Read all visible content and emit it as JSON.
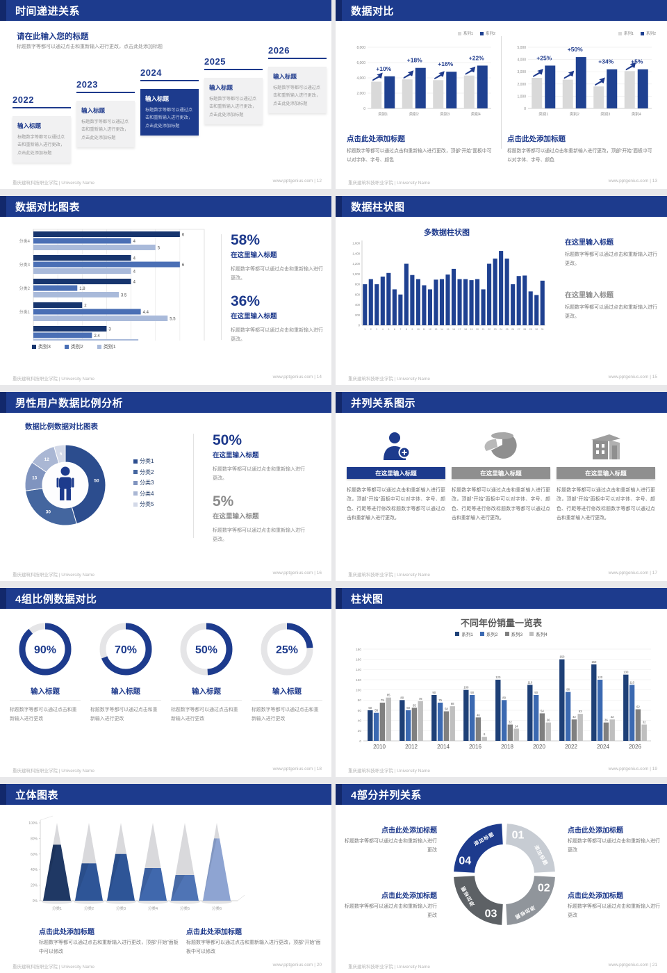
{
  "colors": {
    "accent": "#1d3b8d",
    "accent_dark": "#12286b",
    "heading_blue": "#1e3a8c",
    "text_gray": "#7a7a7a",
    "footer_gray": "#b5b5b5"
  },
  "footer": {
    "left": "重庆建筑科技职业学院 | University Name",
    "site": "www.pptgenius.com",
    "sep": " | "
  },
  "slides": {
    "s1": {
      "title": "时间递进关系",
      "page": "12",
      "heading": "请在此输入您的标题",
      "intro": "标题数字等都可以通过点击和重新输入进行更改，点击此处添加标题",
      "milestones": [
        {
          "year": "2022",
          "title": "输入标题",
          "body": "标题数字等都可以通过点击和重新输入进行更改，点击此处添加标题",
          "highlight": false
        },
        {
          "year": "2023",
          "title": "输入标题",
          "body": "标题数字等都可以通过点击和重新输入进行更改，点击此处添加标题",
          "highlight": false
        },
        {
          "year": "2024",
          "title": "输入标题",
          "body": "标题数字等都可以通过点击和重新输入进行更改，点击此处添加标题",
          "highlight": true
        },
        {
          "year": "2025",
          "title": "输入标题",
          "body": "标题数字等都可以通过点击和重新输入进行更改，点击此处添加标题",
          "highlight": false
        },
        {
          "year": "2026",
          "title": "输入标题",
          "body": "标题数字等都可以通过点击和重新输入进行更改，点击此处添加标题",
          "highlight": false
        }
      ]
    },
    "s2": {
      "title": "数据对比",
      "page": "13",
      "blocks": [
        {
          "heading": "点击此处添加标题",
          "body": "标题数字等都可以通过点击和重新输入进行更改，顶部“开始”面板中可以对字体、字号、颜色"
        },
        {
          "heading": "点击此处添加标题",
          "body": "标题数字等都可以通过点击和重新输入进行更改，顶部“开始”面板中可以对字体、字号、颜色"
        }
      ]
    },
    "s3": {
      "title": "数据对比图表",
      "page": "14",
      "stats": [
        {
          "pct": "58%",
          "heading": "在这里输入标题",
          "body": "标题数字等都可以通过点击和重新输入进行更改。"
        },
        {
          "pct": "36%",
          "heading": "在这里输入标题",
          "body": "标题数字等都可以通过点击和重新输入进行更改。"
        }
      ]
    },
    "s4": {
      "title": "数据柱状图",
      "page": "15",
      "chart_title": "多数据柱状图",
      "blocks": [
        {
          "heading": "在这里输入标题",
          "body": "标题数字等都可以通过点击和重新输入进行更改。",
          "style": "blue"
        },
        {
          "heading": "在这里输入标题",
          "body": "标题数字等都可以通过点击和重新输入进行更改。",
          "style": "gray"
        }
      ]
    },
    "s5": {
      "title": "男性用户数据比例分析",
      "page": "16",
      "chart_title": "数据比例数据对比图表",
      "stats": [
        {
          "pct": "50%",
          "heading": "在这里输入标题",
          "body": "标题数字等都可以通过点击和重新输入进行更改。",
          "style": "blue"
        },
        {
          "pct": "5%",
          "heading": "在这里输入标题",
          "body": "标题数字等都可以通过点击和重新输入进行更改。",
          "style": "gray"
        }
      ]
    },
    "s6": {
      "title": "并列关系图示",
      "page": "17",
      "cards": [
        {
          "icon": "person-add-icon",
          "heading": "在这里输入标题",
          "accent": "blue",
          "body": "标题数字等都可以通过点击和重新输入进行更改，顶部“开始”面板中可以对字体、字号、颜色、行距等进行修改标题数字等都可以通过点击和重新输入进行更改。"
        },
        {
          "icon": "pie-chart-icon",
          "heading": "在这里输入标题",
          "accent": "gray",
          "body": "标题数字等都可以通过点击和重新输入进行更改，顶部“开始”面板中可以对字体、字号、颜色、行距等进行修改标题数字等都可以通过点击和重新输入进行更改。"
        },
        {
          "icon": "building-icon",
          "heading": "在这里输入标题",
          "accent": "gray",
          "body": "标题数字等都可以通过点击和重新输入进行更改，顶部“开始”面板中可以对字体、字号、颜色、行距等进行修改标题数字等都可以通过点击和重新输入进行更改。"
        }
      ]
    },
    "s7": {
      "title": "4组比例数据对比",
      "page": "18",
      "gauges": [
        {
          "pct": 90,
          "label": "90%",
          "heading": "输入标题",
          "body": "标题数字等都可以通过点击和重新输入进行更改"
        },
        {
          "pct": 70,
          "label": "70%",
          "heading": "输入标题",
          "body": "标题数字等都可以通过点击和重新输入进行更改"
        },
        {
          "pct": 50,
          "label": "50%",
          "heading": "输入标题",
          "body": "标题数字等都可以通过点击和重新输入进行更改"
        },
        {
          "pct": 25,
          "label": "25%",
          "heading": "输入标题",
          "body": "标题数字等都可以通过点击和重新输入进行更改"
        }
      ]
    },
    "s8": {
      "title": "柱状图",
      "page": "19",
      "chart_title": "不同年份销量一览表"
    },
    "s9": {
      "title": "立体图表",
      "page": "20",
      "blocks": [
        {
          "heading": "点击此处添加标题",
          "body": "标题数字等都可以通过点击和重新输入进行更改，顶部“开始”面板中可以修改"
        },
        {
          "heading": "点击此处添加标题",
          "body": "标题数字等都可以通过点击和重新输入进行更改，顶部“开始”面板中可以修改"
        }
      ]
    },
    "s10": {
      "title": "4部分并列关系",
      "page": "21",
      "ring": {
        "segments": [
          {
            "num": "01",
            "label": "添加标题",
            "color": "#c7ccd3"
          },
          {
            "num": "02",
            "label": "添加标题",
            "color": "#90959b"
          },
          {
            "num": "03",
            "label": "添加标题",
            "color": "#5d6165"
          },
          {
            "num": "04",
            "label": "添加标题",
            "color": "#1d3b8d"
          }
        ]
      },
      "blocks": [
        {
          "heading": "点击此处添加标题",
          "body": "标题数字等都可以通过点击和重新输入进行更改"
        },
        {
          "heading": "点击此处添加标题",
          "body": "标题数字等都可以通过点击和重新输入进行更改"
        },
        {
          "heading": "点击此处添加标题",
          "body": "标题数字等都可以通过点击和重新输入进行更改"
        },
        {
          "heading": "点击此处添加标题",
          "body": "标题数字等都可以通过点击和重新输入进行更改"
        }
      ]
    }
  },
  "chart_data": [
    {
      "id": "s2-left",
      "type": "bar",
      "categories": [
        "类别1",
        "类别2",
        "类别3",
        "类别4"
      ],
      "series": [
        {
          "name": "系列1",
          "color": "#d9d9d9",
          "values": [
            3500,
            3800,
            3700,
            4300
          ]
        },
        {
          "name": "系列2",
          "color": "#1f4191",
          "values": [
            4200,
            5300,
            4800,
            5600
          ]
        }
      ],
      "annotations": [
        "+10%",
        "+18%",
        "+16%",
        "+22%"
      ],
      "ylim": [
        0,
        8000
      ],
      "ystep": 2000,
      "grid": true,
      "legend_position": "top-right"
    },
    {
      "id": "s2-right",
      "type": "bar",
      "categories": [
        "类别1",
        "类别2",
        "类别3",
        "类别4"
      ],
      "series": [
        {
          "name": "系列1",
          "color": "#d9d9d9",
          "values": [
            2500,
            2350,
            1800,
            3050
          ]
        },
        {
          "name": "系列2",
          "color": "#1f4191",
          "values": [
            3500,
            4200,
            3200,
            3200
          ]
        }
      ],
      "annotations": [
        "+25%",
        "+50%",
        "+34%",
        "+5%"
      ],
      "ylim": [
        0,
        5000
      ],
      "ystep": 1000,
      "grid": true,
      "legend_position": "top-right"
    },
    {
      "id": "s3",
      "type": "bar-horizontal",
      "groups": [
        "分类4",
        "分类3",
        "分类2",
        "分类1",
        ""
      ],
      "series": [
        {
          "name": "类别3",
          "color": "#17356e",
          "values": [
            6,
            4,
            4,
            2,
            3
          ]
        },
        {
          "name": "类别2",
          "color": "#4a6fb5",
          "values": [
            4,
            6,
            1.8,
            4.4,
            2.4
          ]
        },
        {
          "name": "类别1",
          "color": "#a9bada",
          "values": [
            5,
            4,
            3.5,
            5.5,
            4.3
          ]
        }
      ],
      "xlim": [
        0,
        7
      ],
      "xstep": 1,
      "grid": true,
      "legend_position": "bottom"
    },
    {
      "id": "s4",
      "type": "bar",
      "title": "多数据柱状图",
      "categories": [
        "1",
        "2",
        "3",
        "4",
        "5",
        "6",
        "7",
        "8",
        "9",
        "10",
        "11",
        "12",
        "13",
        "14",
        "15",
        "16",
        "17",
        "18",
        "19",
        "20",
        "21",
        "22",
        "23",
        "24",
        "25",
        "26",
        "27",
        "28",
        "29",
        "30",
        "31"
      ],
      "values": [
        800,
        900,
        800,
        950,
        1020,
        700,
        600,
        1200,
        980,
        900,
        780,
        700,
        890,
        900,
        990,
        1100,
        900,
        900,
        880,
        900,
        700,
        1200,
        1300,
        1450,
        1300,
        800,
        960,
        970,
        660,
        590,
        870
      ],
      "bar_color": "#1f4191",
      "ylim": [
        0,
        1600
      ],
      "ystep": 200,
      "grid": false
    },
    {
      "id": "s5",
      "type": "donut",
      "title": "数据比例数据对比图表",
      "labels": [
        "分类1",
        "分类2",
        "分类3",
        "分类4",
        "分类5"
      ],
      "values": [
        50,
        30,
        13,
        12,
        5
      ],
      "colors": [
        "#2c4d8e",
        "#44669f",
        "#8094bf",
        "#aab7d4",
        "#d3d9e8"
      ],
      "center_icon": "male-person-icon",
      "legend_position": "right"
    },
    {
      "id": "s7",
      "type": "gauges",
      "values": [
        90,
        70,
        50,
        25
      ],
      "color": "#1d3b8d",
      "track": "#e5e5e7"
    },
    {
      "id": "s8",
      "type": "bar",
      "title": "不同年份销量一览表",
      "categories": [
        "2010",
        "2012",
        "2014",
        "2016",
        "2018",
        "2020",
        "2022",
        "2024",
        "2026"
      ],
      "series": [
        {
          "name": "系列1",
          "color": "#1e4077",
          "values": [
            60,
            80,
            90,
            100,
            120,
            110,
            160,
            150,
            130
          ]
        },
        {
          "name": "系列2",
          "color": "#3b69b1",
          "values": [
            55,
            60,
            75,
            90,
            80,
            90,
            96,
            120,
            110
          ]
        },
        {
          "name": "系列3",
          "color": "#808080",
          "values": [
            75,
            65,
            58,
            46,
            32,
            54,
            42,
            36,
            62
          ]
        },
        {
          "name": "系列4",
          "color": "#bfbfbf",
          "values": [
            85,
            78,
            68,
            8,
            24,
            36,
            53,
            42,
            32
          ]
        }
      ],
      "ylim": [
        0,
        180
      ],
      "ystep": 20,
      "grid": true,
      "legend_position": "top"
    },
    {
      "id": "s9",
      "type": "cone",
      "categories": [
        "分类1",
        "分类2",
        "分类3",
        "分类4",
        "分类5",
        "分类6"
      ],
      "values_pct": [
        72,
        48,
        60,
        42,
        33,
        80
      ],
      "colors": [
        "#1f3864",
        "#2e5597",
        "#2e5597",
        "#4068ad",
        "#4f74b5",
        "#8ea4d2"
      ],
      "top_color": "#d9d9dc",
      "ytick_labels": [
        "0%",
        "20%",
        "40%",
        "60%",
        "80%",
        "100%"
      ]
    }
  ]
}
